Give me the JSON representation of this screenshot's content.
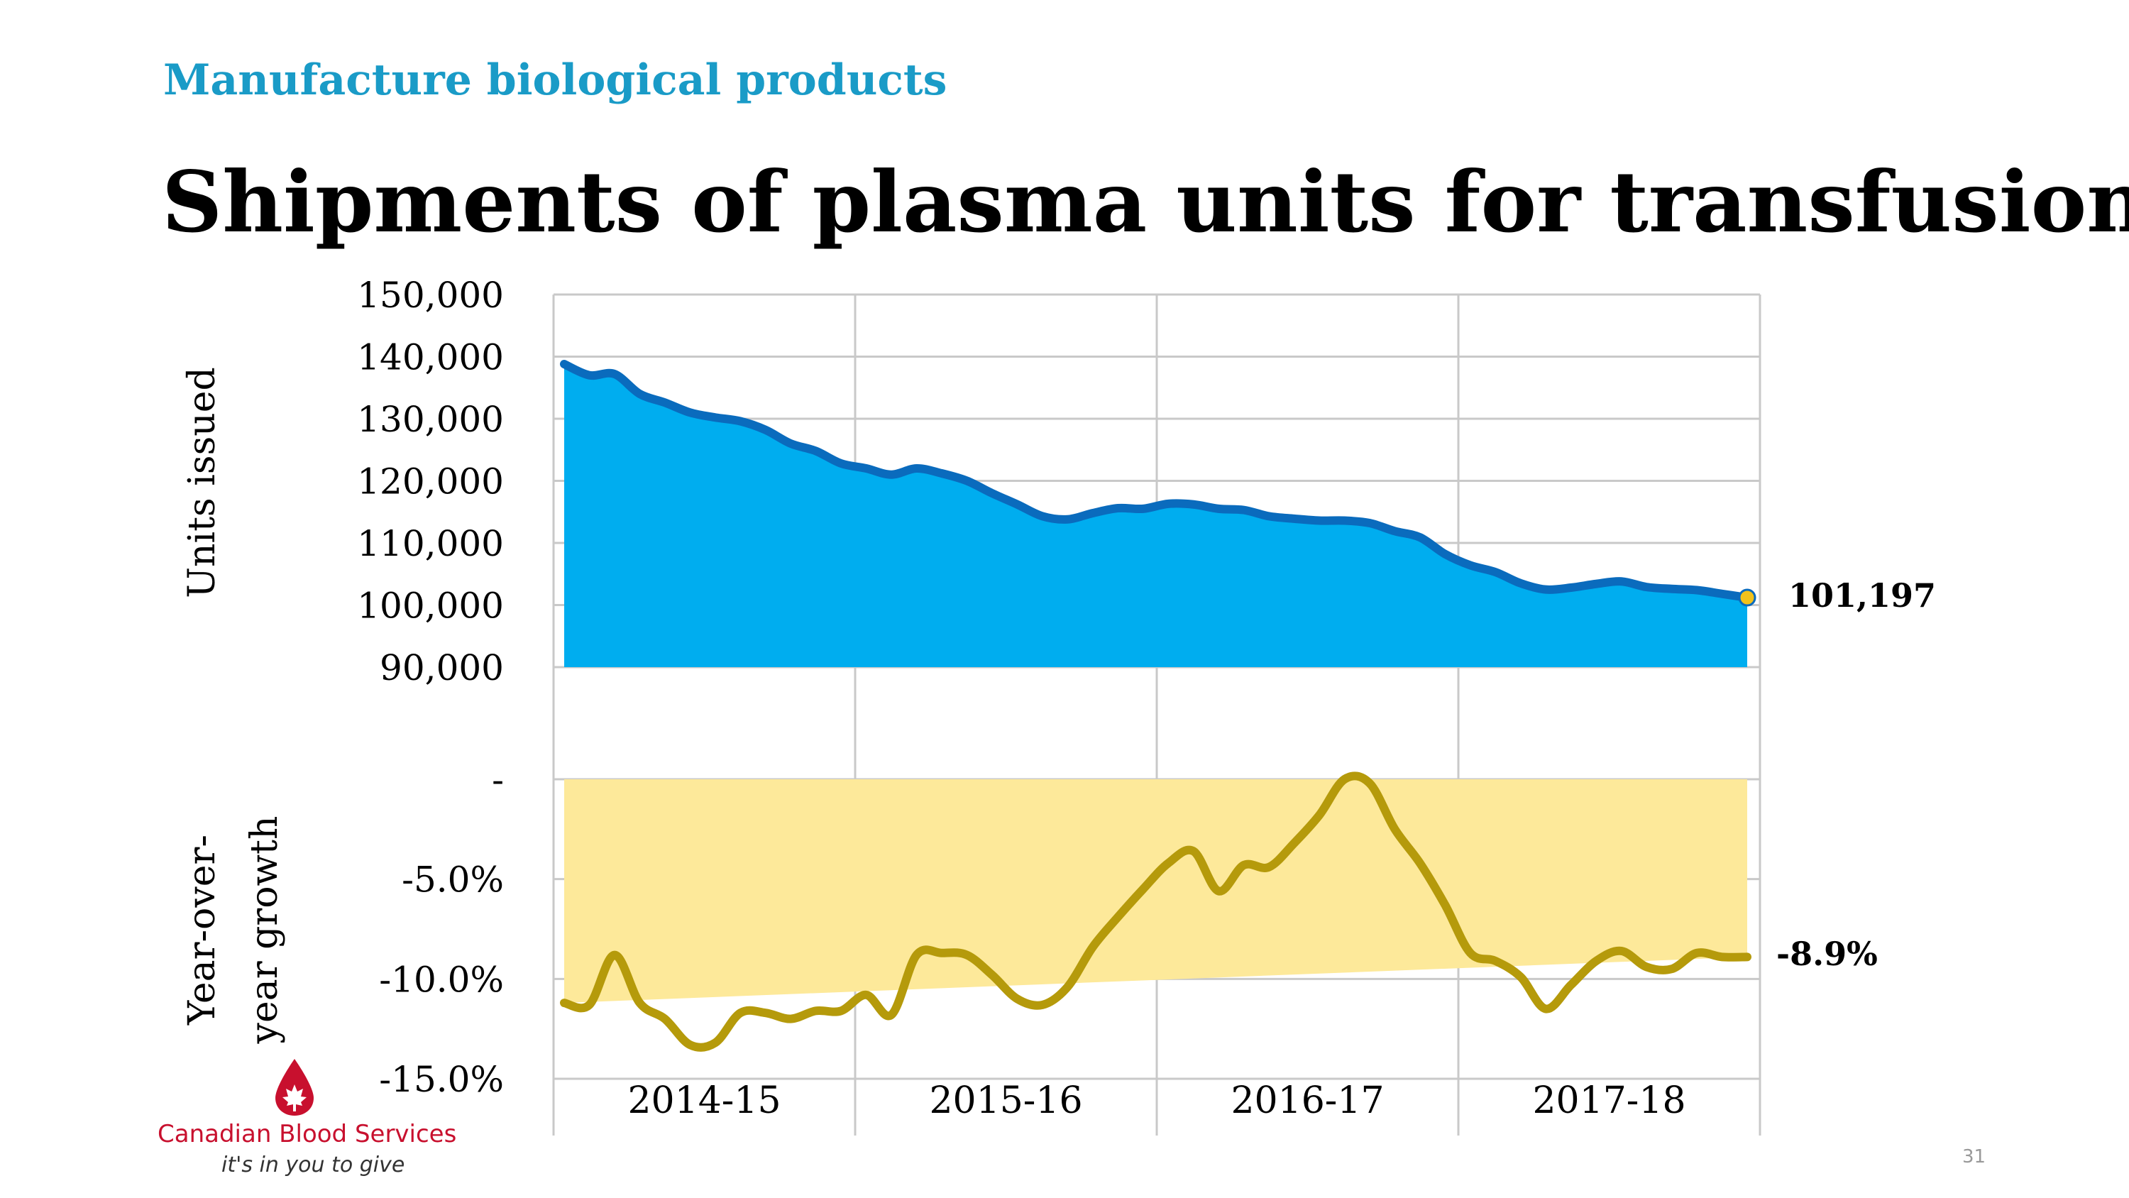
{
  "slide": {
    "section_label": "Manufacture biological products",
    "title": "Shipments of plasma units for transfusion",
    "page_number": "31"
  },
  "logo": {
    "name": "Canadian Blood Services",
    "tagline": "it's in you to give",
    "brand_color": "#c8102e"
  },
  "chart_data": [
    {
      "type": "area",
      "ylabel": "Units issued",
      "ylim": [
        90000,
        150000
      ],
      "yticks": [
        90000,
        100000,
        110000,
        120000,
        130000,
        140000,
        150000
      ],
      "ytick_labels": [
        "90,000",
        "100,000",
        "110,000",
        "120,000",
        "130,000",
        "140,000",
        "150,000"
      ],
      "x": [
        0,
        1,
        2,
        3,
        4,
        5,
        6,
        7,
        8,
        9,
        10,
        11,
        12,
        13,
        14,
        15,
        16,
        17,
        18,
        19,
        20,
        21,
        22,
        23,
        24,
        25,
        26,
        27,
        28,
        29,
        30,
        31,
        32,
        33,
        34,
        35,
        36,
        37,
        38,
        39,
        40,
        41,
        42,
        43,
        44,
        45,
        46,
        47
      ],
      "values": [
        138800,
        137000,
        137200,
        134000,
        132600,
        131000,
        130200,
        129600,
        128200,
        126000,
        124800,
        122800,
        122000,
        121000,
        122000,
        121200,
        120000,
        118000,
        116200,
        114300,
        113800,
        114800,
        115600,
        115500,
        116300,
        116200,
        115500,
        115300,
        114300,
        113900,
        113600,
        113600,
        113200,
        111900,
        110900,
        108200,
        106400,
        105300,
        103500,
        102500,
        102800,
        103400,
        103800,
        102900,
        102600,
        102400,
        101800,
        101197
      ],
      "line_color": "#0a6bbd",
      "fill_color": "#00adef",
      "end_label": "101,197",
      "grid": true
    },
    {
      "type": "area",
      "ylabel": "Year-over-year growth",
      "ylabel_lines": [
        "Year-over-",
        "year growth"
      ],
      "ylim": [
        -15,
        0
      ],
      "yticks": [
        0,
        -5,
        -10,
        -15
      ],
      "ytick_labels": [
        "-",
        "-5.0%",
        "-10.0%",
        "-15.0%"
      ],
      "x": [
        0,
        1,
        2,
        3,
        4,
        5,
        6,
        7,
        8,
        9,
        10,
        11,
        12,
        13,
        14,
        15,
        16,
        17,
        18,
        19,
        20,
        21,
        22,
        23,
        24,
        25,
        26,
        27,
        28,
        29,
        30,
        31,
        32,
        33,
        34,
        35,
        36,
        37,
        38,
        39,
        40,
        41,
        42,
        43,
        44,
        45,
        46,
        47
      ],
      "values": [
        -11.2,
        -11.3,
        -8.8,
        -11.2,
        -12.0,
        -13.3,
        -13.2,
        -11.7,
        -11.7,
        -12.0,
        -11.6,
        -11.6,
        -10.8,
        -11.8,
        -8.8,
        -8.7,
        -8.8,
        -9.8,
        -11.0,
        -11.3,
        -10.4,
        -8.4,
        -6.9,
        -5.5,
        -4.2,
        -3.6,
        -5.6,
        -4.3,
        -4.4,
        -3.2,
        -1.8,
        0.0,
        -0.2,
        -2.5,
        -4.2,
        -6.3,
        -8.7,
        -9.1,
        -9.9,
        -11.5,
        -10.3,
        -9.1,
        -8.6,
        -9.4,
        -9.5,
        -8.7,
        -8.9,
        -8.9
      ],
      "line_color": "#b59a0b",
      "fill_color": "#fde99a",
      "end_label": "-8.9%",
      "grid": true
    }
  ],
  "x_axis": {
    "categories": [
      "2014-15",
      "2015-16",
      "2016-17",
      "2017-18"
    ],
    "points_per_category": 12
  }
}
